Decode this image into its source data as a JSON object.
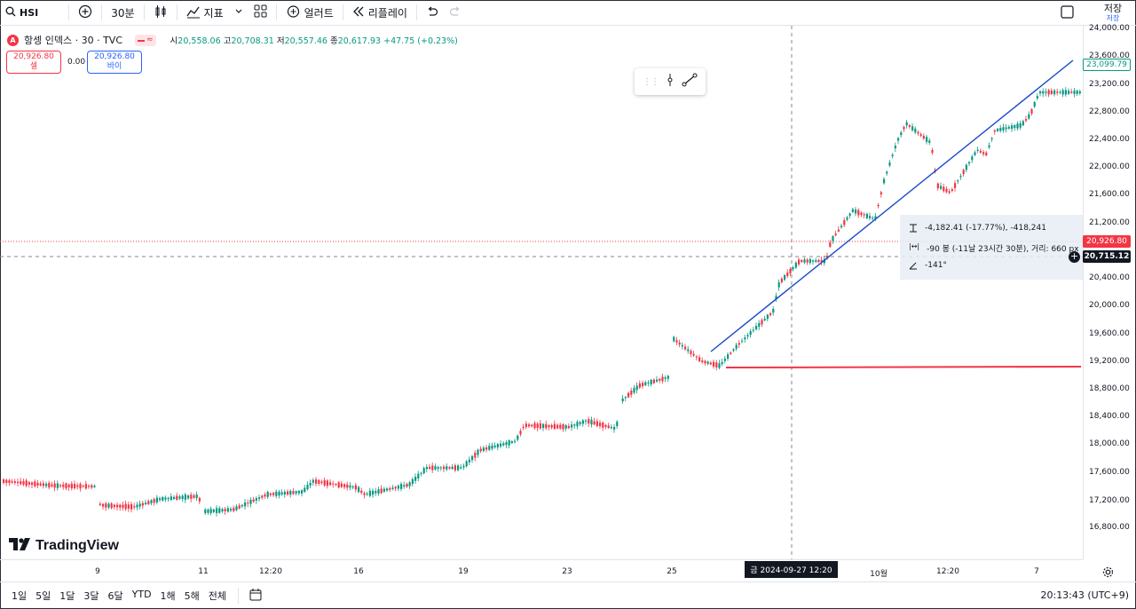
{
  "toolbar": {
    "symbol": "HSI",
    "interval": "30분",
    "indicators": "지표",
    "alerts": "얼러트",
    "replay": "리플레이",
    "save_top": "저장",
    "save_bottom": "저장"
  },
  "legend": {
    "title": "항셍 인덱스 · 30 · TVC",
    "o_label": "시",
    "o": "20,558.06",
    "h_label": "고",
    "h": "20,708.31",
    "l_label": "저",
    "l": "20,557.46",
    "c_label": "종",
    "c": "20,617.93",
    "change": "+47.75 (+0.23%)"
  },
  "trade": {
    "sell_price": "20,926.80",
    "sell_label": "셀",
    "spread": "0.00",
    "buy_price": "20,926.80",
    "buy_label": "바이"
  },
  "price_axis": {
    "ticks": [
      "24,000.00",
      "23,600.00",
      "23,200.00",
      "22,800.00",
      "22,400.00",
      "22,000.00",
      "21,600.00",
      "21,200.00",
      "20,400.00",
      "20,000.00",
      "19,600.00",
      "19,200.00",
      "18,800.00",
      "18,400.00",
      "18,000.00",
      "17,600.00",
      "17,200.00",
      "16,800.00",
      "16,400.00"
    ],
    "last_price": "23,099.79",
    "bid_price": "20,926.80",
    "cross_price": "20,715.12"
  },
  "time_axis": {
    "labels": [
      "9",
      "11",
      "12:20",
      "16",
      "19",
      "23",
      "25",
      "10월",
      "12:20",
      "7"
    ],
    "crosshair": "금 2024-09-27   12:20"
  },
  "measure": {
    "price_range": "-4,182.41 (-17.77%), -418,241",
    "bars_range": "-90 봉 (-11날 23시간 30분), 거리: 660 px",
    "angle": "-141°"
  },
  "bottom": {
    "ranges": [
      "1일",
      "5일",
      "1달",
      "3달",
      "6달",
      "YTD",
      "1해",
      "5해",
      "전체"
    ],
    "clock": "20:13:43 (UTC+9)"
  },
  "brand": {
    "logo_text": "TradingView"
  },
  "colors": {
    "up": "#089981",
    "down": "#f23645",
    "trend": "#1848cc",
    "hline": "#f23645",
    "accent": "#2962ff"
  },
  "chart_data": {
    "type": "candlestick",
    "ylim": [
      16100,
      24100
    ],
    "x_labels": [
      "9",
      "11",
      "12:20",
      "16",
      "19",
      "23",
      "25",
      "10월",
      "12:20",
      "7"
    ],
    "candles": []
  }
}
